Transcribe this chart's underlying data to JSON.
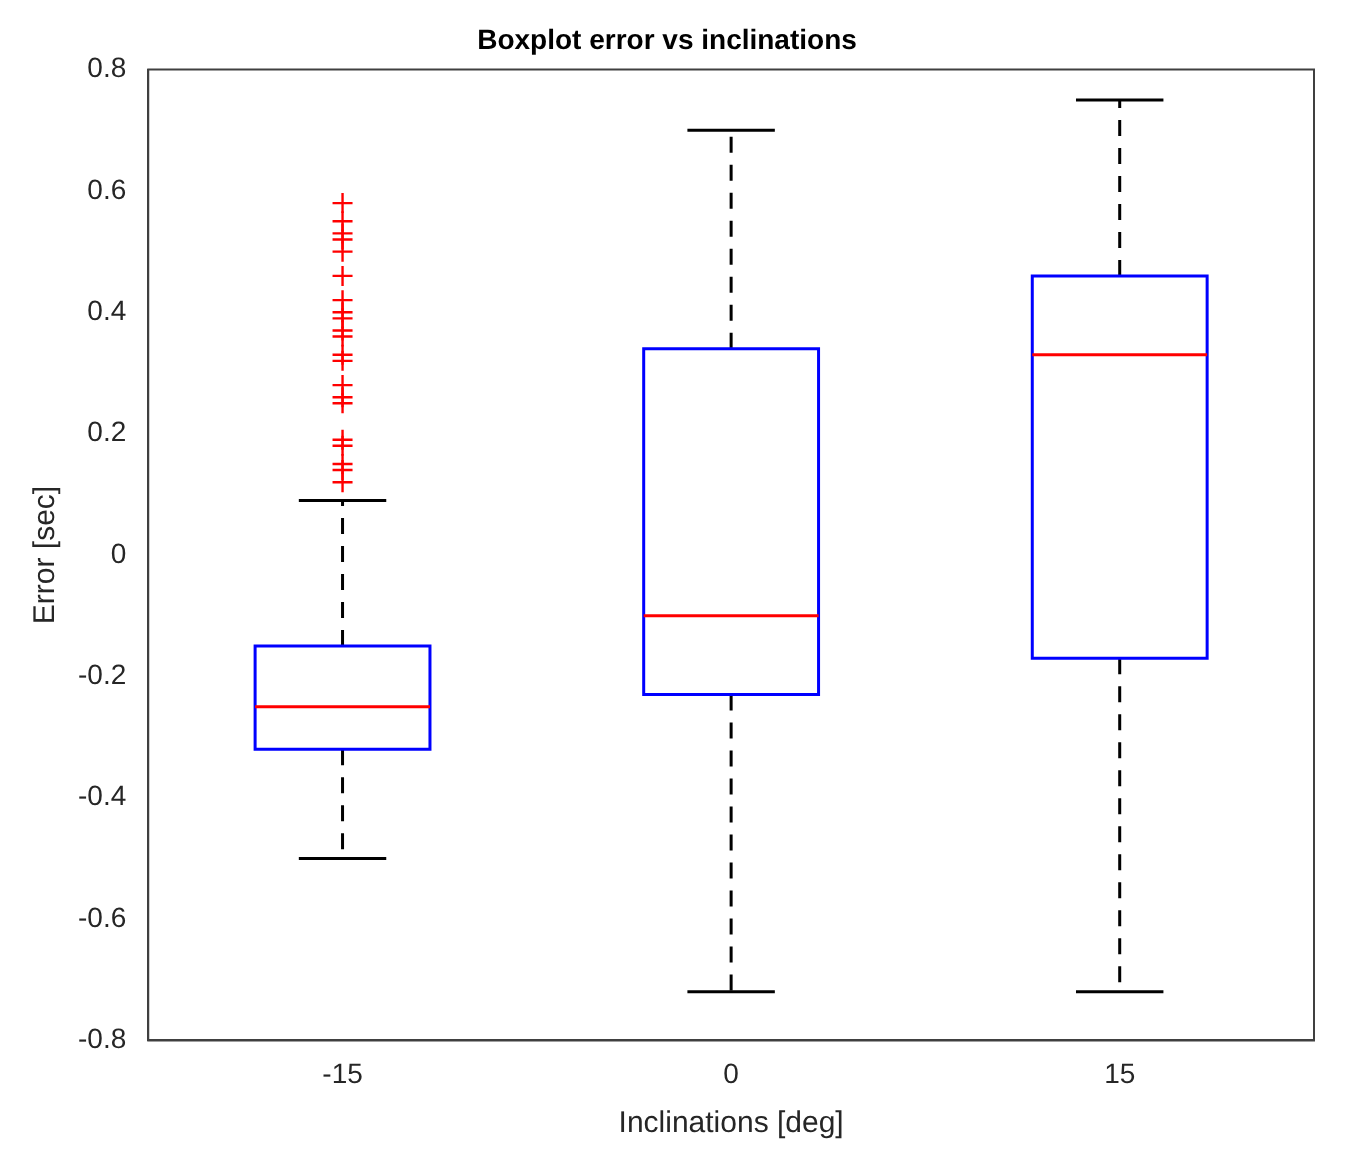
{
  "chart_data": {
    "type": "box",
    "title": "Boxplot error vs inclinations",
    "xlabel": "Inclinations [deg]",
    "ylabel": "Error [sec]",
    "categories": [
      "-15",
      "0",
      "15"
    ],
    "color": "#0000ff",
    "marker": "cross",
    "grid": false,
    "legend": false,
    "boxes": [
      {
        "low": -0.5,
        "q1": -0.32,
        "median": -0.25,
        "q3": -0.15,
        "high": 0.09,
        "outliers": [
          0.58,
          0.55,
          0.53,
          0.52,
          0.5,
          0.46,
          0.42,
          0.4,
          0.39,
          0.37,
          0.36,
          0.33,
          0.32,
          0.28,
          0.26,
          0.25,
          0.19,
          0.18,
          0.15,
          0.14,
          0.12
        ]
      },
      {
        "low": -0.72,
        "q1": -0.23,
        "median": -0.1,
        "q3": 0.34,
        "high": 0.7
      },
      {
        "low": -0.72,
        "q1": -0.17,
        "median": 0.33,
        "q3": 0.46,
        "high": 0.75
      }
    ],
    "ylim": [
      -0.8,
      0.8
    ],
    "yticks": [
      -0.8,
      -0.6,
      -0.4,
      -0.2,
      0,
      0.2,
      0.4,
      0.6,
      0.8
    ]
  }
}
